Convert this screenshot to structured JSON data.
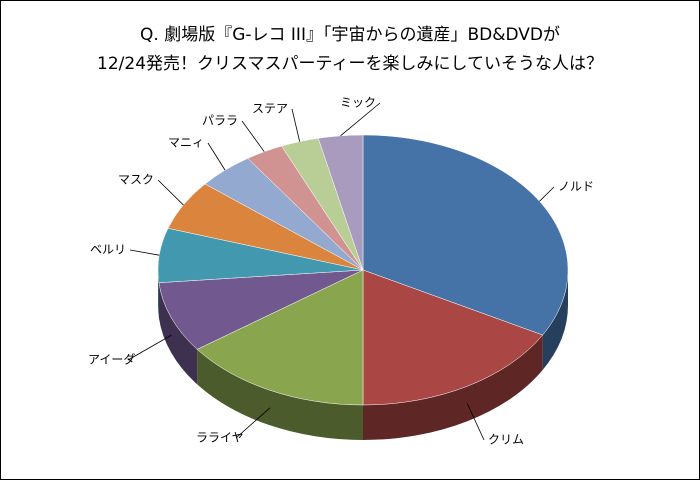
{
  "chart_data": {
    "type": "pie3d",
    "title": [
      "Q.  劇場版『G-レコ III』「宇宙からの遺産」BD&DVDが",
      "12/24発売！クリスマスパーティーを楽しみにしていそうな人は？"
    ],
    "categories": [
      "ノルド",
      "クリム",
      "ラライヤ",
      "アイーダ",
      "ベルリ",
      "マスク",
      "マニィ",
      "パララ",
      "ステア",
      "ミック"
    ],
    "values": [
      33,
      17,
      15,
      8.5,
      6.5,
      6,
      4.5,
      3,
      3,
      3.5
    ],
    "colors": [
      "#4572a7",
      "#aa4643",
      "#89a54e",
      "#71588f",
      "#4198af",
      "#db843d",
      "#93a9cf",
      "#d19392",
      "#b9cd96",
      "#a99bbd"
    ]
  }
}
